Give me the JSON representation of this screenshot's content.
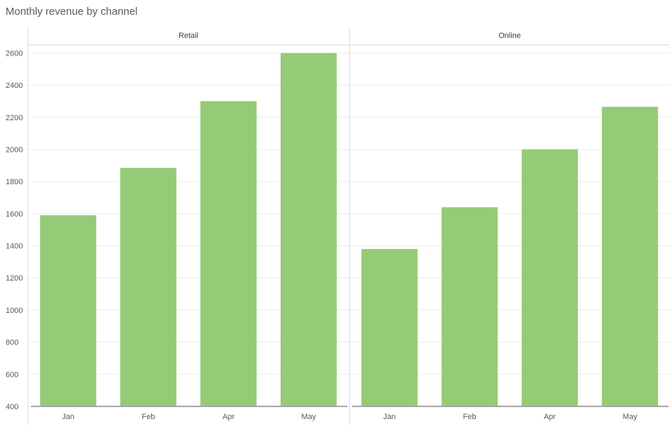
{
  "chart_data": {
    "type": "bar",
    "title": "Monthly revenue by channel",
    "categories": [
      "Jan",
      "Feb",
      "Apr",
      "May"
    ],
    "series": [
      {
        "name": "Retail",
        "values": [
          1590,
          1885,
          2300,
          2600
        ]
      },
      {
        "name": "Online",
        "values": [
          1380,
          1640,
          2000,
          2265
        ]
      }
    ],
    "yticks": [
      400,
      600,
      800,
      1000,
      1200,
      1400,
      1600,
      1800,
      2000,
      2200,
      2400,
      2600
    ],
    "ylim": [
      400,
      2650
    ],
    "xlabel": "",
    "ylabel": "",
    "grid": true,
    "bar_color": "#93cb77",
    "grid_color": "#ececec",
    "axis_color": "#a6a6a6"
  }
}
